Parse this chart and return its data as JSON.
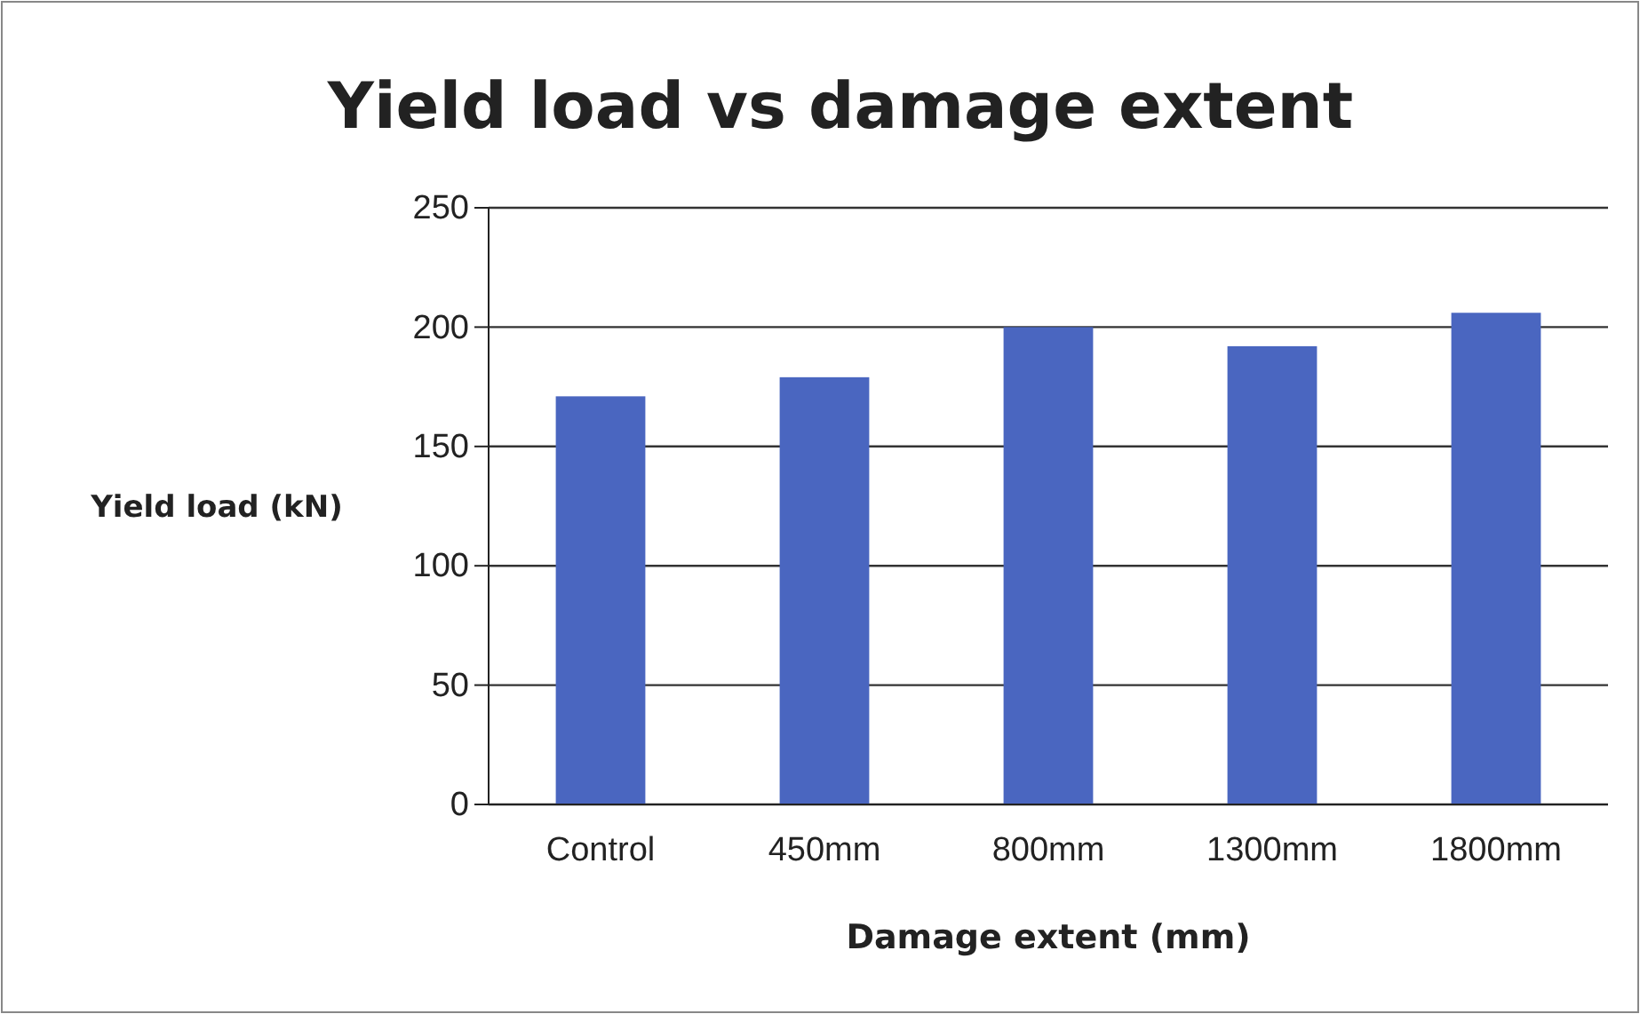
{
  "chart_data": {
    "type": "bar",
    "title": "Yield load vs damage extent",
    "xlabel": "Damage extent (mm)",
    "ylabel": "Yield load (kN)",
    "categories": [
      "Control",
      "450mm",
      "800mm",
      "1300mm",
      "1800mm"
    ],
    "values": [
      171,
      179,
      200,
      192,
      206
    ],
    "color": "#4a66c0",
    "ylim": [
      0,
      250
    ],
    "yticks": [
      0,
      50,
      100,
      150,
      200,
      250
    ],
    "grid": "y"
  }
}
